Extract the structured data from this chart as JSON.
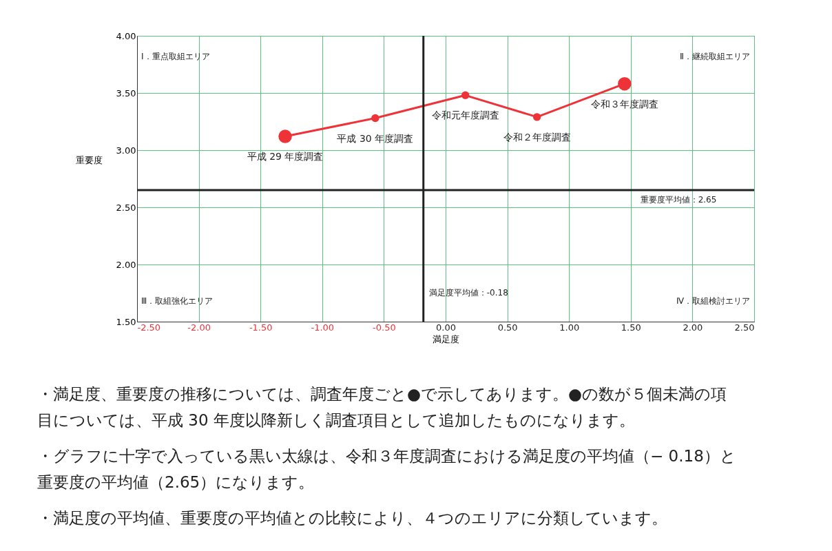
{
  "chart_data": {
    "type": "line",
    "xlabel": "満足度",
    "ylabel": "重要度",
    "x": [
      -1.3,
      -0.57,
      0.16,
      0.74,
      1.45
    ],
    "series": [
      {
        "color": "#ee3338",
        "values": [
          3.12,
          3.28,
          3.48,
          3.29,
          3.58
        ]
      }
    ],
    "marker": "circle",
    "line_style": "solid",
    "grid": true,
    "xlim": [
      -2.5,
      2.5
    ],
    "ylim": [
      1.5,
      4.0
    ],
    "xticks": [
      {
        "value": -2.5,
        "label": "-2.50"
      },
      {
        "value": -2.0,
        "label": "-2.00"
      },
      {
        "value": -1.5,
        "label": "-1.50"
      },
      {
        "value": -1.0,
        "label": "-1.00"
      },
      {
        "value": -0.5,
        "label": "-0.50"
      },
      {
        "value": 0,
        "label": "0.00"
      },
      {
        "value": 0.5,
        "label": "0.50"
      },
      {
        "value": 1.0,
        "label": "1.00"
      },
      {
        "value": 1.5,
        "label": "1.50"
      },
      {
        "value": 2.0,
        "label": "2.00"
      },
      {
        "value": 2.5,
        "label": "2.50"
      }
    ],
    "yticks": [
      {
        "value": 1.5,
        "label": "1.50"
      },
      {
        "value": 2.0,
        "label": "2.00"
      },
      {
        "value": 2.5,
        "label": "2.50"
      },
      {
        "value": 3.0,
        "label": "3.00"
      },
      {
        "value": 3.5,
        "label": "3.50"
      },
      {
        "value": 4.0,
        "label": "4.00"
      }
    ],
    "ref_lines": [
      {
        "axis": "x",
        "value": -0.18,
        "label": "満足度平均値：-0.18",
        "color": "#222222"
      },
      {
        "axis": "y",
        "value": 2.65,
        "label": "重要度平均値：2.65",
        "color": "#222222"
      }
    ],
    "annotations": [
      {
        "text": "平成 29 年度調査",
        "x": -1.3,
        "y": 3.12
      },
      {
        "text": "平成 30 年度調査",
        "x": -0.57,
        "y": 3.28
      },
      {
        "text": "令和元年度調査",
        "x": 0.16,
        "y": 3.48
      },
      {
        "text": "令和２年度調査",
        "x": 0.74,
        "y": 3.29
      },
      {
        "text": "令和３年度調査",
        "x": 1.45,
        "y": 3.58
      },
      "Ⅰ．重点取組エリア",
      "Ⅱ．継続取組エリア",
      "Ⅲ．取組強化エリア",
      "Ⅳ．取組検討エリア",
      "・満足度、重要度の推移については、調査年度ごと●で示してあります。●の数が５個未満の項目については、平成 30 年度以降新しく調査項目として追加したものになります。",
      "・グラフに十字で入っている黒い太線は、令和３年度調査における満足度の平均値（− 0.18）と重要度の平均値（2.65）になります。",
      "・満足度の平均値、重要度の平均値との比較により、４つのエリアに分類しています。"
    ]
  }
}
